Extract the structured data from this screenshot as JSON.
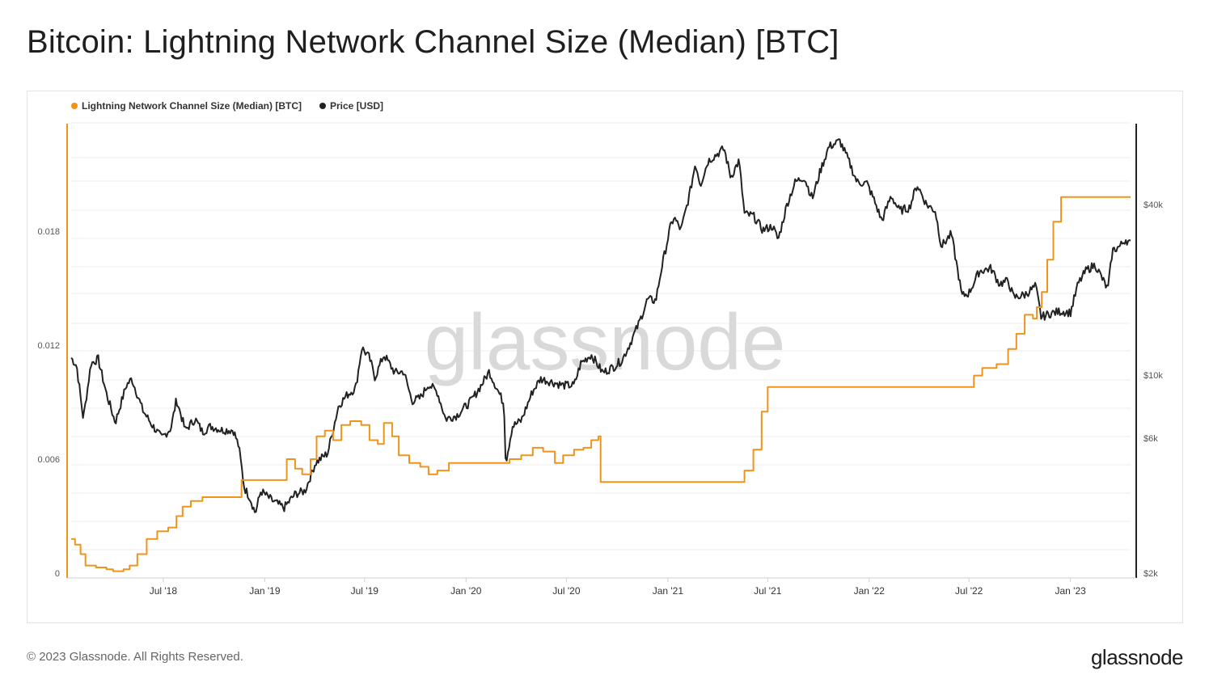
{
  "title": "Bitcoin: Lightning Network Channel Size (Median) [BTC]",
  "footer": {
    "copyright": "© 2023 Glassnode. All Rights Reserved.",
    "logo": "glassnode"
  },
  "watermark": "glassnode",
  "colors": {
    "channel_series": "#f0931b",
    "price_series": "#222222",
    "grid": "#ececec"
  },
  "chart_data": {
    "type": "line",
    "title": "Bitcoin: Lightning Network Channel Size (Median) [BTC]",
    "legend_position": "top-left",
    "grid": true,
    "x_range": [
      "2018-01-15",
      "2023-04-20"
    ],
    "x_ticks": [
      {
        "date": "2018-07-01",
        "label": "Jul '18"
      },
      {
        "date": "2019-01-01",
        "label": "Jan '19"
      },
      {
        "date": "2019-07-01",
        "label": "Jul '19"
      },
      {
        "date": "2020-01-01",
        "label": "Jan '20"
      },
      {
        "date": "2020-07-01",
        "label": "Jul '20"
      },
      {
        "date": "2021-01-01",
        "label": "Jan '21"
      },
      {
        "date": "2021-07-01",
        "label": "Jul '21"
      },
      {
        "date": "2022-01-01",
        "label": "Jan '22"
      },
      {
        "date": "2022-07-01",
        "label": "Jul '22"
      },
      {
        "date": "2023-01-01",
        "label": "Jan '23"
      }
    ],
    "y_left": {
      "range": [
        0,
        0.024
      ],
      "ticks": [
        {
          "value": 0,
          "label": "0"
        },
        {
          "value": 0.006,
          "label": "0.006"
        },
        {
          "value": 0.012,
          "label": "0.012"
        },
        {
          "value": 0.018,
          "label": "0.018"
        }
      ]
    },
    "y_right": {
      "scale": "log",
      "range": [
        2000,
        70000
      ],
      "ticks": [
        {
          "value": 2000,
          "label": "$2k"
        },
        {
          "value": 6000,
          "label": "$6k"
        },
        {
          "value": 10000,
          "label": "$10k"
        },
        {
          "value": 40000,
          "label": "$40k"
        }
      ]
    },
    "series": [
      {
        "name": "Lightning Network Channel Size (Median) [BTC]",
        "axis": "left",
        "step": true,
        "points": [
          [
            "2018-01-15",
            0.0018
          ],
          [
            "2018-01-22",
            0.0015
          ],
          [
            "2018-02-01",
            0.001
          ],
          [
            "2018-02-10",
            0.0004
          ],
          [
            "2018-03-01",
            0.0003
          ],
          [
            "2018-03-20",
            0.0002
          ],
          [
            "2018-04-01",
            0.0001
          ],
          [
            "2018-04-20",
            0.0002
          ],
          [
            "2018-05-01",
            0.0004
          ],
          [
            "2018-05-15",
            0.001
          ],
          [
            "2018-06-01",
            0.0018
          ],
          [
            "2018-06-20",
            0.0022
          ],
          [
            "2018-07-10",
            0.0024
          ],
          [
            "2018-07-25",
            0.003
          ],
          [
            "2018-08-05",
            0.0035
          ],
          [
            "2018-08-20",
            0.0038
          ],
          [
            "2018-09-10",
            0.004
          ],
          [
            "2018-10-01",
            0.004
          ],
          [
            "2018-11-01",
            0.004
          ],
          [
            "2018-11-20",
            0.0049
          ],
          [
            "2019-01-01",
            0.0049
          ],
          [
            "2019-01-15",
            0.0049
          ],
          [
            "2019-02-10",
            0.006
          ],
          [
            "2019-02-25",
            0.0055
          ],
          [
            "2019-03-10",
            0.0052
          ],
          [
            "2019-03-25",
            0.006
          ],
          [
            "2019-04-05",
            0.0072
          ],
          [
            "2019-04-20",
            0.0075
          ],
          [
            "2019-05-05",
            0.007
          ],
          [
            "2019-05-20",
            0.0078
          ],
          [
            "2019-06-05",
            0.008
          ],
          [
            "2019-06-25",
            0.0078
          ],
          [
            "2019-07-10",
            0.007
          ],
          [
            "2019-07-25",
            0.0068
          ],
          [
            "2019-08-05",
            0.0079
          ],
          [
            "2019-08-20",
            0.0072
          ],
          [
            "2019-09-01",
            0.0062
          ],
          [
            "2019-09-20",
            0.0058
          ],
          [
            "2019-10-10",
            0.0056
          ],
          [
            "2019-10-25",
            0.0052
          ],
          [
            "2019-11-10",
            0.0054
          ],
          [
            "2019-12-01",
            0.0058
          ],
          [
            "2020-01-01",
            0.0058
          ],
          [
            "2020-02-01",
            0.0058
          ],
          [
            "2020-03-01",
            0.0058
          ],
          [
            "2020-03-20",
            0.006
          ],
          [
            "2020-04-10",
            0.0062
          ],
          [
            "2020-05-01",
            0.0066
          ],
          [
            "2020-05-20",
            0.0064
          ],
          [
            "2020-06-10",
            0.0058
          ],
          [
            "2020-06-25",
            0.0062
          ],
          [
            "2020-07-15",
            0.0065
          ],
          [
            "2020-08-01",
            0.0066
          ],
          [
            "2020-08-15",
            0.007
          ],
          [
            "2020-08-28",
            0.0072
          ],
          [
            "2020-09-01",
            0.0048
          ],
          [
            "2020-12-01",
            0.0048
          ],
          [
            "2021-03-01",
            0.0048
          ],
          [
            "2021-05-01",
            0.0048
          ],
          [
            "2021-05-20",
            0.0054
          ],
          [
            "2021-06-05",
            0.0065
          ],
          [
            "2021-06-20",
            0.0085
          ],
          [
            "2021-07-01",
            0.0098
          ],
          [
            "2021-10-01",
            0.0098
          ],
          [
            "2022-01-01",
            0.0098
          ],
          [
            "2022-05-01",
            0.0098
          ],
          [
            "2022-06-20",
            0.0098
          ],
          [
            "2022-07-10",
            0.0104
          ],
          [
            "2022-07-25",
            0.0108
          ],
          [
            "2022-08-20",
            0.011
          ],
          [
            "2022-09-10",
            0.0118
          ],
          [
            "2022-09-25",
            0.0126
          ],
          [
            "2022-10-10",
            0.0136
          ],
          [
            "2022-10-25",
            0.0134
          ],
          [
            "2022-11-01",
            0.014
          ],
          [
            "2022-11-10",
            0.0148
          ],
          [
            "2022-11-20",
            0.0165
          ],
          [
            "2022-12-01",
            0.0185
          ],
          [
            "2022-12-15",
            0.0198
          ],
          [
            "2023-01-01",
            0.0198
          ],
          [
            "2023-02-01",
            0.0198
          ],
          [
            "2023-04-20",
            0.0198
          ]
        ]
      },
      {
        "name": "Price [USD]",
        "axis": "right",
        "step": false,
        "points": [
          [
            "2018-01-15",
            11500
          ],
          [
            "2018-01-25",
            10800
          ],
          [
            "2018-02-06",
            7000
          ],
          [
            "2018-02-20",
            11000
          ],
          [
            "2018-03-05",
            11400
          ],
          [
            "2018-03-20",
            8600
          ],
          [
            "2018-04-05",
            6800
          ],
          [
            "2018-04-25",
            9200
          ],
          [
            "2018-05-05",
            9700
          ],
          [
            "2018-05-25",
            7500
          ],
          [
            "2018-06-10",
            6700
          ],
          [
            "2018-06-28",
            6000
          ],
          [
            "2018-07-15",
            6500
          ],
          [
            "2018-07-25",
            8200
          ],
          [
            "2018-08-10",
            6400
          ],
          [
            "2018-08-28",
            7000
          ],
          [
            "2018-09-10",
            6300
          ],
          [
            "2018-09-25",
            6600
          ],
          [
            "2018-10-15",
            6400
          ],
          [
            "2018-11-05",
            6400
          ],
          [
            "2018-11-15",
            5600
          ],
          [
            "2018-11-25",
            4000
          ],
          [
            "2018-12-05",
            3700
          ],
          [
            "2018-12-15",
            3250
          ],
          [
            "2018-12-25",
            3900
          ],
          [
            "2019-01-15",
            3600
          ],
          [
            "2019-02-05",
            3400
          ],
          [
            "2019-02-25",
            3800
          ],
          [
            "2019-03-15",
            3900
          ],
          [
            "2019-04-03",
            4900
          ],
          [
            "2019-04-25",
            5300
          ],
          [
            "2019-05-15",
            7800
          ],
          [
            "2019-05-30",
            8500
          ],
          [
            "2019-06-15",
            9000
          ],
          [
            "2019-06-26",
            12500
          ],
          [
            "2019-07-10",
            11500
          ],
          [
            "2019-07-20",
            9800
          ],
          [
            "2019-08-05",
            11800
          ],
          [
            "2019-08-25",
            10200
          ],
          [
            "2019-09-10",
            10300
          ],
          [
            "2019-09-25",
            8100
          ],
          [
            "2019-10-10",
            8300
          ],
          [
            "2019-10-25",
            9300
          ],
          [
            "2019-11-10",
            8700
          ],
          [
            "2019-11-25",
            7000
          ],
          [
            "2019-12-15",
            7200
          ],
          [
            "2020-01-10",
            8100
          ],
          [
            "2020-01-30",
            9300
          ],
          [
            "2020-02-12",
            10300
          ],
          [
            "2020-02-28",
            8800
          ],
          [
            "2020-03-10",
            7900
          ],
          [
            "2020-03-13",
            4900
          ],
          [
            "2020-03-25",
            6600
          ],
          [
            "2020-04-10",
            6900
          ],
          [
            "2020-04-30",
            8700
          ],
          [
            "2020-05-15",
            9700
          ],
          [
            "2020-06-01",
            9500
          ],
          [
            "2020-06-25",
            9200
          ],
          [
            "2020-07-15",
            9200
          ],
          [
            "2020-07-27",
            11000
          ],
          [
            "2020-08-15",
            11800
          ],
          [
            "2020-09-05",
            10200
          ],
          [
            "2020-09-25",
            10700
          ],
          [
            "2020-10-10",
            11300
          ],
          [
            "2020-10-25",
            13000
          ],
          [
            "2020-11-10",
            15300
          ],
          [
            "2020-11-25",
            18500
          ],
          [
            "2020-12-10",
            18300
          ],
          [
            "2020-12-20",
            23500
          ],
          [
            "2021-01-05",
            33000
          ],
          [
            "2021-01-12",
            36000
          ],
          [
            "2021-01-25",
            32500
          ],
          [
            "2021-02-10",
            44000
          ],
          [
            "2021-02-20",
            56000
          ],
          [
            "2021-03-01",
            47000
          ],
          [
            "2021-03-15",
            57000
          ],
          [
            "2021-04-13",
            63000
          ],
          [
            "2021-04-25",
            50000
          ],
          [
            "2021-05-10",
            57000
          ],
          [
            "2021-05-20",
            37000
          ],
          [
            "2021-06-05",
            36500
          ],
          [
            "2021-06-22",
            32500
          ],
          [
            "2021-07-10",
            33500
          ],
          [
            "2021-07-20",
            30000
          ],
          [
            "2021-08-05",
            40000
          ],
          [
            "2021-08-20",
            48000
          ],
          [
            "2021-09-05",
            50000
          ],
          [
            "2021-09-20",
            42000
          ],
          [
            "2021-10-05",
            53000
          ],
          [
            "2021-10-20",
            64000
          ],
          [
            "2021-11-09",
            67000
          ],
          [
            "2021-11-25",
            57000
          ],
          [
            "2021-12-10",
            48000
          ],
          [
            "2021-12-28",
            47500
          ],
          [
            "2022-01-10",
            41500
          ],
          [
            "2022-01-24",
            35000
          ],
          [
            "2022-02-10",
            43000
          ],
          [
            "2022-02-25",
            38000
          ],
          [
            "2022-03-15",
            39000
          ],
          [
            "2022-03-29",
            47000
          ],
          [
            "2022-04-15",
            40000
          ],
          [
            "2022-05-01",
            38000
          ],
          [
            "2022-05-12",
            28500
          ],
          [
            "2022-05-30",
            31500
          ],
          [
            "2022-06-13",
            22000
          ],
          [
            "2022-06-18",
            19000
          ],
          [
            "2022-07-01",
            19500
          ],
          [
            "2022-07-20",
            23300
          ],
          [
            "2022-08-10",
            23800
          ],
          [
            "2022-08-25",
            21000
          ],
          [
            "2022-09-10",
            21500
          ],
          [
            "2022-09-20",
            18800
          ],
          [
            "2022-10-10",
            19200
          ],
          [
            "2022-10-30",
            20600
          ],
          [
            "2022-11-09",
            16000
          ],
          [
            "2022-11-25",
            16500
          ],
          [
            "2022-12-15",
            16800
          ],
          [
            "2023-01-01",
            16600
          ],
          [
            "2023-01-15",
            21000
          ],
          [
            "2023-01-30",
            23500
          ],
          [
            "2023-02-15",
            24500
          ],
          [
            "2023-03-10",
            20000
          ],
          [
            "2023-03-18",
            27500
          ],
          [
            "2023-04-01",
            28500
          ],
          [
            "2023-04-11",
            30200
          ],
          [
            "2023-04-20",
            29000
          ]
        ]
      }
    ]
  }
}
